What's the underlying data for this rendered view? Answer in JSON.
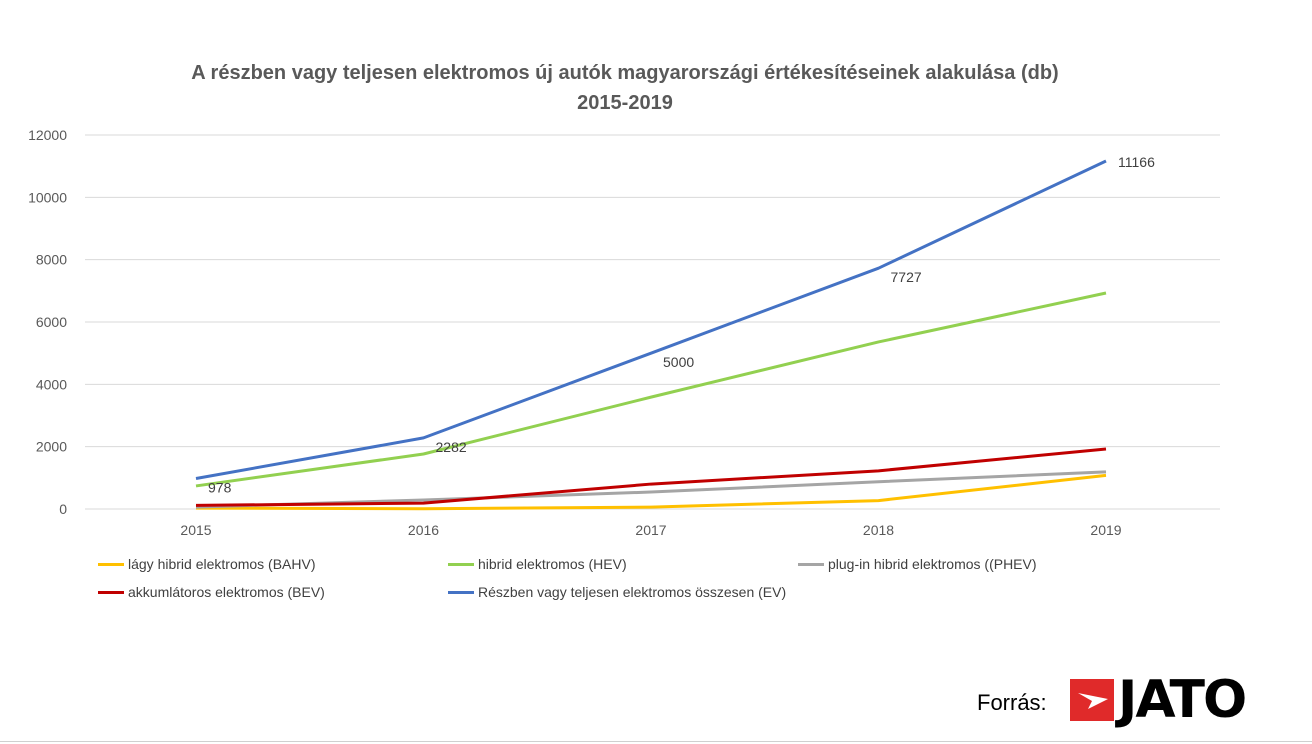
{
  "chart_data": {
    "type": "line",
    "title": "A részben vagy teljesen elektromos új autók magyarországi értékesítéseinek alakulása (db)",
    "subtitle": "2015-2019",
    "xlabel": "",
    "ylabel": "",
    "categories": [
      "2015",
      "2016",
      "2017",
      "2018",
      "2019"
    ],
    "ylim": [
      0,
      12000
    ],
    "yticks": [
      0,
      2000,
      4000,
      6000,
      8000,
      10000,
      12000
    ],
    "grid": true,
    "legend_position": "bottom",
    "series": [
      {
        "name": "lágy hibrid elektromos (BAHV)",
        "color": "#FFC000",
        "values": [
          30,
          10,
          60,
          270,
          1080
        ]
      },
      {
        "name": "hibrid elektromos (HEV)",
        "color": "#92D050",
        "values": [
          740,
          1765,
          3590,
          5360,
          6930
        ]
      },
      {
        "name": "plug-in hibrid elektromos ((PHEV)",
        "color": "#A5A5A5",
        "values": [
          60,
          290,
          545,
          875,
          1190
        ]
      },
      {
        "name": "akkumlátoros elektromos (BEV)",
        "color": "#C00000",
        "values": [
          115,
          190,
          800,
          1225,
          1925
        ]
      },
      {
        "name": "Részben vagy teljesen elektromos összesen (EV)",
        "color": "#4472C4",
        "values": [
          978,
          2282,
          5000,
          7727,
          11166
        ],
        "labels": [
          "978",
          "2282",
          "5000",
          "7727",
          "11166"
        ]
      }
    ]
  },
  "footer": {
    "source_label": "Forrás:",
    "logo_text": "JATO"
  }
}
